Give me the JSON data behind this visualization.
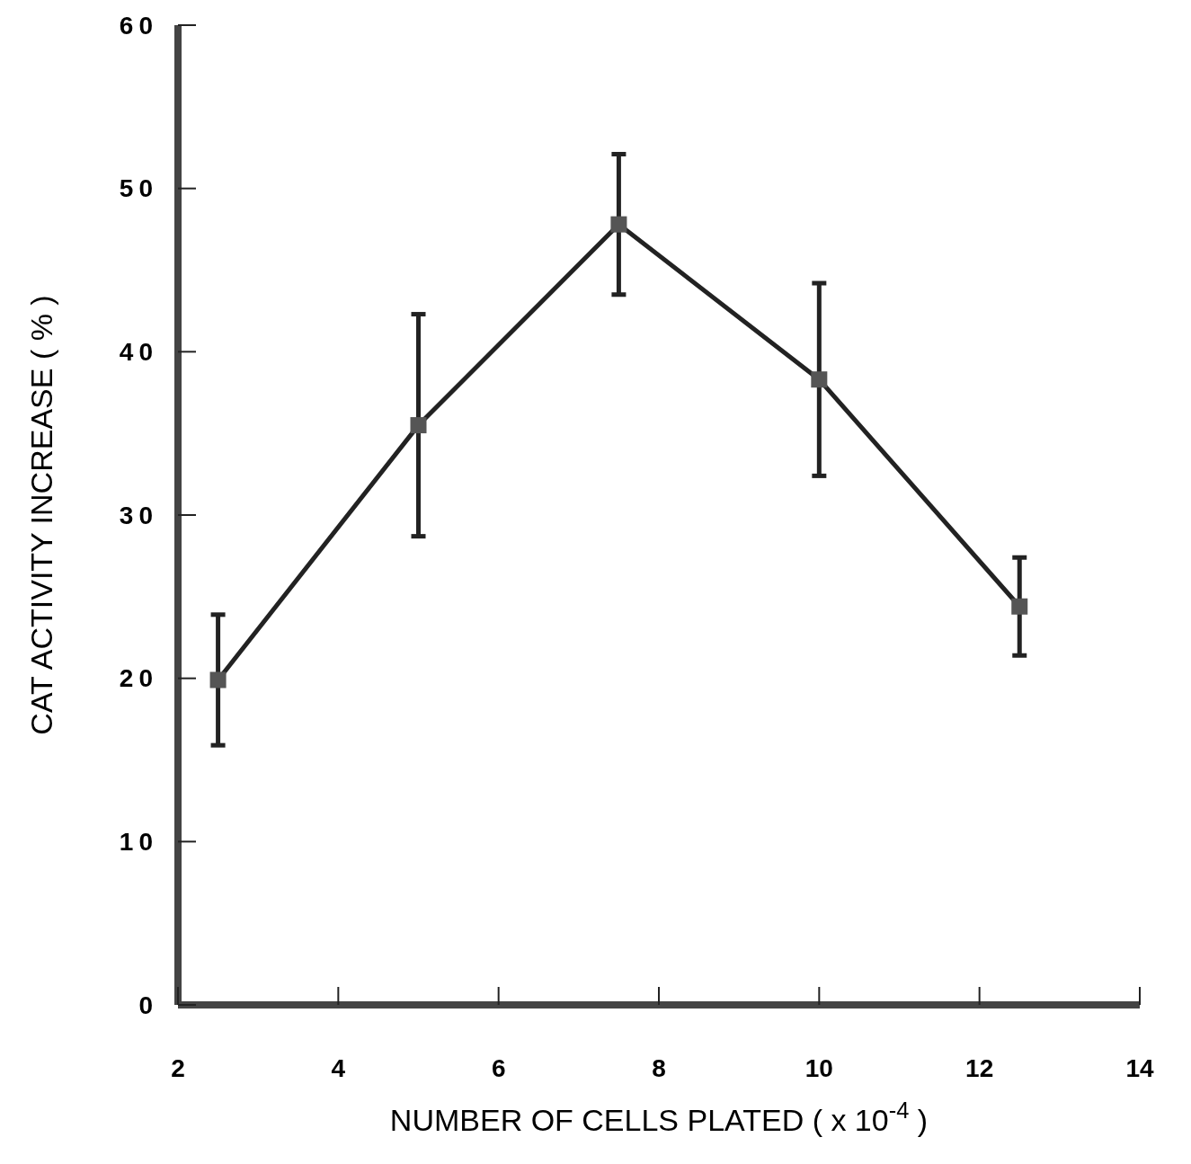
{
  "chart_data": {
    "type": "line",
    "xlabel": "NUMBER OF CELLS PLATED ( x 10$^{-4}$ )",
    "ylabel": "CAT ACTIVITY INCREASE ( % )",
    "x": [
      2.5,
      5,
      7.5,
      10,
      12.5
    ],
    "series": [
      {
        "color": "#222222",
        "values": [
          19.9,
          35.5,
          47.8,
          38.3,
          24.4
        ],
        "errors": [
          4,
          6.8,
          4.3,
          5.9,
          3
        ]
      }
    ],
    "xlim": [
      2,
      14
    ],
    "xticks": [
      2,
      4,
      6,
      8,
      10,
      12,
      14
    ],
    "ylim": [
      0,
      60
    ],
    "yticks": [
      0,
      10,
      20,
      30,
      40,
      50,
      60
    ],
    "marker": "square",
    "line_style": "solid",
    "grid": false
  }
}
